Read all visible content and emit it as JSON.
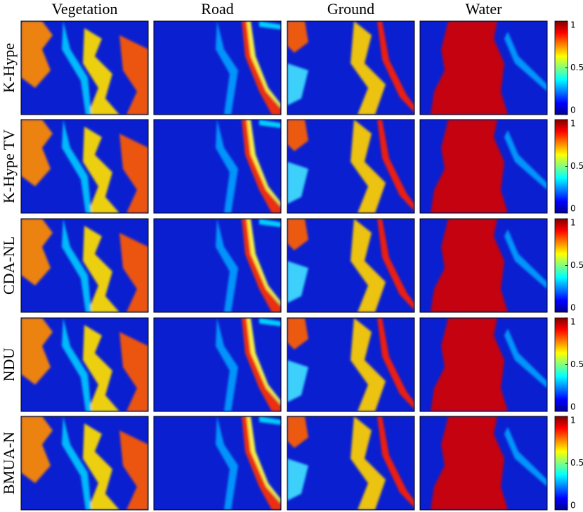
{
  "columns": [
    "Vegetation",
    "Road",
    "Ground",
    "Water"
  ],
  "rows": [
    "K-Hype",
    "K-Hype TV",
    "CDA-NL",
    "NDU",
    "BMUA-N"
  ],
  "colorbar": {
    "ticks": [
      0,
      0.5,
      1
    ]
  }
}
